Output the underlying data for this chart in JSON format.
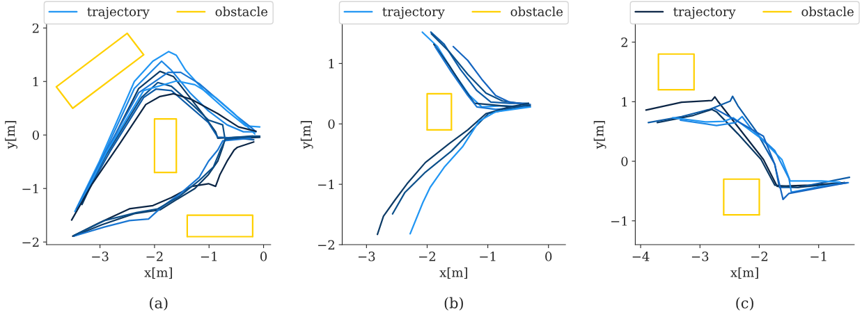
{
  "chart_data": [
    {
      "type": "line",
      "xlabel": "x[m]",
      "ylabel": "y[m]",
      "annotations": [
        "(a)"
      ],
      "legend": "top",
      "xlim": [
        -3.98,
        0.13
      ],
      "ylim": [
        -2.05,
        2.07
      ],
      "xticks": [
        -3,
        -2,
        -1,
        0
      ],
      "yticks": [
        -2,
        -1,
        0,
        1,
        2
      ],
      "series": [
        {
          "name": "trajectory",
          "color": "#2196f3",
          "x": [
            -3.46,
            -3.01,
            -2.37,
            -2.03,
            -1.74,
            -1.6,
            -1.43,
            -1.09,
            -0.67,
            -0.33,
            -0.07
          ],
          "values": [
            -1.43,
            -0.49,
            1.0,
            1.38,
            1.56,
            1.49,
            1.21,
            0.83,
            0.45,
            0.17,
            0.15
          ]
        },
        {
          "color": "#1e88e5",
          "x": [
            -3.35,
            -2.97,
            -2.37,
            -1.87,
            -1.69,
            -1.35,
            -1.01,
            -0.67,
            -0.37,
            -0.14
          ],
          "values": [
            -1.26,
            -0.45,
            0.87,
            1.38,
            1.21,
            0.79,
            0.45,
            0.19,
            0.06,
            0.06
          ]
        },
        {
          "color": "#0d3b66",
          "x": [
            -3.33,
            -2.88,
            -2.29,
            -1.9,
            -1.65,
            -1.35,
            -1.09,
            -0.88,
            -0.84,
            -0.46,
            -0.07
          ],
          "values": [
            -1.3,
            -0.32,
            0.87,
            1.19,
            1.09,
            0.7,
            0.36,
            0.06,
            -0.06,
            -0.04,
            -0.04
          ]
        },
        {
          "color": "#1976d2",
          "x": [
            -3.43,
            -2.92,
            -2.29,
            -1.75,
            -1.52,
            -1.18,
            -0.84,
            -0.5,
            -0.24,
            -0.14
          ],
          "values": [
            -1.38,
            -0.36,
            0.79,
            1.17,
            1.17,
            0.96,
            0.66,
            0.36,
            0.15,
            0.06
          ]
        },
        {
          "color": "#0b4f8a",
          "x": [
            -3.35,
            -2.88,
            -2.24,
            -1.94,
            -1.69,
            -1.31,
            -1.01,
            -0.75,
            -0.71,
            -0.24,
            -0.07
          ],
          "values": [
            -1.26,
            -0.36,
            0.7,
            0.98,
            0.91,
            0.57,
            0.28,
            0.19,
            -0.06,
            -0.02,
            -0.02
          ]
        },
        {
          "color": "#2196f3",
          "x": [
            -3.39,
            -2.88,
            -2.2,
            -1.6,
            -1.26,
            -0.88,
            -0.54,
            -0.33,
            -0.16
          ],
          "values": [
            -1.34,
            -0.32,
            0.83,
            1.01,
            0.94,
            0.7,
            0.4,
            0.19,
            0.02
          ]
        },
        {
          "color": "#0d5ca8",
          "x": [
            -3.31,
            -2.8,
            -2.2,
            -1.97,
            -1.69,
            -1.35,
            -1.01,
            -0.84,
            -0.46,
            -0.18
          ],
          "values": [
            -1.21,
            -0.28,
            0.7,
            0.86,
            0.83,
            0.53,
            0.23,
            -0.04,
            -0.06,
            -0.09
          ]
        },
        {
          "color": "#0b2545",
          "x": [
            -3.52,
            -3.14,
            -2.63,
            -2.16,
            -1.9,
            -1.65,
            -1.31,
            -0.84,
            -0.46,
            -0.14
          ],
          "values": [
            -1.59,
            -0.91,
            -0.15,
            0.57,
            0.72,
            0.77,
            0.66,
            0.4,
            0.15,
            0.07
          ]
        },
        {
          "color": "#0b2545",
          "x": [
            -3.5,
            -3.01,
            -2.46,
            -2.03,
            -1.69,
            -1.31,
            -1.01,
            -0.88,
            -0.8,
            -0.67,
            -0.54,
            -0.48,
            -0.18
          ],
          "values": [
            -1.89,
            -1.64,
            -1.38,
            -1.32,
            -1.17,
            -0.96,
            -0.91,
            -0.96,
            -0.74,
            -0.49,
            -0.28,
            -0.23,
            -0.13
          ]
        },
        {
          "color": "#0d3b66",
          "x": [
            -3.48,
            -2.97,
            -2.37,
            -1.9,
            -1.6,
            -1.26,
            -1.01,
            -0.84,
            -0.75,
            -0.71,
            -0.07
          ],
          "values": [
            -1.89,
            -1.68,
            -1.47,
            -1.4,
            -1.21,
            -1.0,
            -0.74,
            -0.49,
            -0.23,
            -0.09,
            -0.04
          ]
        },
        {
          "color": "#1976d2",
          "x": [
            -3.48,
            -2.92,
            -2.46,
            -2.11,
            -1.86,
            -1.52,
            -1.18,
            -1.01,
            -0.84,
            -0.75,
            -0.24
          ],
          "values": [
            -1.89,
            -1.72,
            -1.6,
            -1.57,
            -1.34,
            -1.09,
            -0.79,
            -0.49,
            -0.28,
            -0.11,
            -0.06
          ]
        },
        {
          "color": "#0b4f8a",
          "x": [
            -3.48,
            -2.92,
            -2.33,
            -1.94,
            -1.55,
            -1.18,
            -0.92,
            -0.8,
            -0.7,
            -0.2
          ],
          "values": [
            -1.88,
            -1.6,
            -1.45,
            -1.38,
            -1.15,
            -0.85,
            -0.6,
            -0.3,
            -0.08,
            -0.02
          ]
        },
        {
          "name": "obstacle",
          "color": "#ffd000",
          "x": [
            -3.8,
            -2.5,
            -2.2
          ],
          "values": [
            0.9,
            1.9,
            1.5
          ]
        },
        {
          "color": "#ffd000",
          "x": [
            -3.8,
            -3.5,
            -2.2
          ],
          "values": [
            0.9,
            0.5,
            1.5
          ]
        },
        {
          "color": "#ffd000",
          "x": [
            -2.0,
            -2.0,
            -1.6,
            -1.6
          ],
          "values": [
            -0.7,
            0.3,
            0.3,
            -0.7
          ]
        },
        {
          "color": "#ffd000",
          "x": [
            -2.0,
            -1.6
          ],
          "values": [
            -0.7,
            -0.7
          ]
        },
        {
          "color": "#ffd000",
          "x": [
            -1.4,
            -1.4,
            -0.2,
            -0.2
          ],
          "values": [
            -1.9,
            -1.5,
            -1.5,
            -1.9
          ]
        },
        {
          "color": "#ffd000",
          "x": [
            -1.4,
            -0.2
          ],
          "values": [
            -1.9,
            -1.9
          ]
        }
      ]
    },
    {
      "type": "line",
      "xlabel": "x[m]",
      "ylabel": "y[m]",
      "annotations": [
        "(b)"
      ],
      "legend": "top",
      "xlim": [
        -3.4,
        0.28
      ],
      "ylim": [
        -2.0,
        1.65
      ],
      "xticks": [
        -3,
        -2,
        -1,
        0
      ],
      "yticks": [
        -2,
        -1,
        0,
        1
      ],
      "series": [
        {
          "name": "trajectory",
          "color": "#2196f3",
          "x": [
            -2.08,
            -1.83,
            -1.57,
            -1.3,
            -1.1,
            -0.76,
            -0.3
          ],
          "values": [
            1.52,
            1.28,
            0.86,
            0.47,
            0.28,
            0.3,
            0.28
          ]
        },
        {
          "color": "#0d5ca8",
          "x": [
            -1.94,
            -1.72,
            -1.45,
            -1.18,
            -0.95,
            -0.64,
            -0.33
          ],
          "values": [
            1.52,
            1.32,
            0.9,
            0.55,
            0.36,
            0.34,
            0.34
          ]
        },
        {
          "color": "#0b4f8a",
          "x": [
            -1.93,
            -1.64,
            -1.33,
            -1.03,
            -0.76,
            -0.33
          ],
          "values": [
            1.49,
            1.2,
            0.82,
            0.51,
            0.38,
            0.32
          ]
        },
        {
          "color": "#0d3b66",
          "x": [
            -1.89,
            -1.64,
            -1.37,
            -1.22,
            -0.99,
            -0.57,
            -0.3
          ],
          "values": [
            1.32,
            0.97,
            0.55,
            0.34,
            0.32,
            0.28,
            0.3
          ]
        },
        {
          "color": "#1976d2",
          "x": [
            -1.87,
            -1.6,
            -1.33,
            -1.18,
            -0.87,
            -0.37
          ],
          "values": [
            1.28,
            0.86,
            0.47,
            0.28,
            0.24,
            0.28
          ]
        },
        {
          "color": "#1565c0",
          "x": [
            -1.57,
            -1.33,
            -1.1,
            -0.87,
            -0.64,
            -0.3
          ],
          "values": [
            1.28,
            1.05,
            0.74,
            0.47,
            0.36,
            0.32
          ]
        },
        {
          "color": "#0d3b66",
          "x": [
            -2.82,
            -2.72,
            -2.53,
            -2.33,
            -2.03,
            -1.64,
            -1.33,
            -1.03,
            -0.64,
            -0.33
          ],
          "values": [
            -1.83,
            -1.53,
            -1.26,
            -0.99,
            -0.64,
            -0.33,
            -0.1,
            0.17,
            0.28,
            0.34
          ]
        },
        {
          "color": "#0b4f8a",
          "x": [
            -2.57,
            -2.37,
            -2.03,
            -1.6,
            -1.26,
            -0.99,
            -0.33
          ],
          "values": [
            -1.49,
            -1.14,
            -0.8,
            -0.45,
            -0.1,
            0.17,
            0.32
          ]
        },
        {
          "color": "#2196f3",
          "x": [
            -2.28,
            -2.07,
            -1.95,
            -1.72,
            -1.41,
            -1.14,
            -0.87,
            -0.3
          ],
          "values": [
            -1.82,
            -1.3,
            -1.05,
            -0.72,
            -0.37,
            0.05,
            0.2,
            0.28
          ]
        },
        {
          "name": "obstacle",
          "color": "#ffd000",
          "x": [
            -2.0,
            -2.0,
            -1.6,
            -1.6
          ],
          "values": [
            -0.1,
            0.5,
            0.5,
            -0.1
          ]
        },
        {
          "color": "#ffd000",
          "x": [
            -2.0,
            -1.6
          ],
          "values": [
            -0.1,
            -0.1
          ]
        }
      ]
    },
    {
      "type": "line",
      "xlabel": "x[m]",
      "ylabel": "y[m]",
      "annotations": [
        "(c)"
      ],
      "legend": "top",
      "xlim": [
        -4.09,
        -0.4
      ],
      "ylim": [
        -1.4,
        2.3
      ],
      "xticks": [
        -4,
        -3,
        -2,
        -1
      ],
      "yticks": [
        -1,
        0,
        1,
        2
      ],
      "series": [
        {
          "name": "trajectory",
          "color": "#0b2545",
          "x": [
            -3.91,
            -3.31,
            -2.8,
            -2.75,
            -2.7,
            -2.33,
            -1.93,
            -1.7,
            -1.15,
            -0.56
          ],
          "values": [
            0.86,
            0.99,
            1.02,
            1.08,
            1.01,
            0.54,
            0.03,
            -0.42,
            -0.4,
            -0.36
          ]
        },
        {
          "color": "#0d5ca8",
          "x": [
            -3.87,
            -3.31,
            -2.84,
            -2.49,
            -2.45,
            -2.36,
            -2.05,
            -1.74,
            -1.66,
            -1.35,
            -0.48
          ],
          "values": [
            0.65,
            0.75,
            0.87,
            1.01,
            1.09,
            0.93,
            0.5,
            -0.05,
            -0.44,
            -0.44,
            -0.27
          ]
        },
        {
          "color": "#0d3b66",
          "x": [
            -3.72,
            -3.11,
            -2.8,
            -2.72,
            -2.36,
            -1.97,
            -1.74,
            -1.35,
            -0.56
          ],
          "values": [
            0.65,
            0.77,
            0.87,
            0.83,
            0.46,
            0.03,
            -0.4,
            -0.44,
            -0.36
          ]
        },
        {
          "color": "#2196f3",
          "x": [
            -3.46,
            -2.91,
            -2.6,
            -2.44,
            -1.97,
            -1.62,
            -1.48,
            -0.95,
            -0.64
          ],
          "values": [
            0.73,
            0.66,
            0.67,
            0.73,
            0.38,
            0.03,
            -0.33,
            -0.33,
            -0.35
          ]
        },
        {
          "color": "#1e88e5",
          "x": [
            -3.33,
            -2.72,
            -2.4,
            -2.29,
            -2.13,
            -1.74,
            -1.5,
            -1.46,
            -0.95,
            -0.5
          ],
          "values": [
            0.69,
            0.6,
            0.65,
            0.75,
            0.54,
            0.18,
            -0.29,
            -0.52,
            -0.42,
            -0.36
          ]
        },
        {
          "color": "#1565c0",
          "x": [
            -2.76,
            -2.33,
            -1.93,
            -1.74,
            -1.6,
            -1.5,
            -0.95,
            -0.52
          ],
          "values": [
            0.89,
            0.65,
            0.42,
            -0.05,
            -0.64,
            -0.54,
            -0.44,
            -0.36
          ]
        },
        {
          "name": "obstacle",
          "color": "#ffd000",
          "x": [
            -3.7,
            -3.7,
            -3.1,
            -3.1
          ],
          "values": [
            1.2,
            1.8,
            1.8,
            1.2
          ]
        },
        {
          "color": "#ffd000",
          "x": [
            -3.7,
            -3.1
          ],
          "values": [
            1.2,
            1.2
          ]
        },
        {
          "color": "#ffd000",
          "x": [
            -2.6,
            -2.6,
            -2.0,
            -2.0
          ],
          "values": [
            -0.9,
            -0.3,
            -0.3,
            -0.9
          ]
        },
        {
          "color": "#ffd000",
          "x": [
            -2.6,
            -2.0
          ],
          "values": [
            -0.9,
            -0.9
          ]
        }
      ]
    }
  ]
}
